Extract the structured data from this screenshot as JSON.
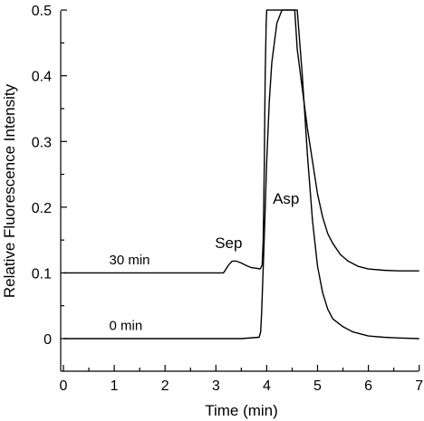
{
  "chart_data": {
    "type": "line",
    "xlabel": "Time (min)",
    "ylabel": "Relative Fluorescence Intensity",
    "xlim": [
      0,
      7
    ],
    "ylim": [
      -0.05,
      0.5
    ],
    "xticks": [
      "0",
      "1",
      "2",
      "3",
      "4",
      "5",
      "6",
      "7"
    ],
    "yticks": [
      "0",
      "0.1",
      "0.2",
      "0.3",
      "0.4",
      "0.5"
    ],
    "grid": false,
    "series": [
      {
        "name": "30 min",
        "x": [
          0.0,
          3.15,
          3.25,
          3.32,
          3.4,
          3.5,
          3.6,
          3.7,
          3.8,
          3.87,
          3.91,
          3.93,
          3.95,
          3.97,
          3.99,
          4.0,
          4.55,
          4.6,
          4.7,
          4.8,
          4.9,
          5.0,
          5.1,
          5.2,
          5.3,
          5.45,
          5.6,
          5.8,
          6.0,
          6.3,
          6.6,
          7.0
        ],
        "y": [
          0.1,
          0.1,
          0.112,
          0.118,
          0.118,
          0.115,
          0.111,
          0.108,
          0.107,
          0.106,
          0.112,
          0.15,
          0.25,
          0.4,
          0.48,
          0.5,
          0.5,
          0.44,
          0.38,
          0.32,
          0.27,
          0.22,
          0.185,
          0.16,
          0.145,
          0.128,
          0.118,
          0.11,
          0.106,
          0.104,
          0.103,
          0.103
        ]
      },
      {
        "name": "0 min",
        "x": [
          0.0,
          3.5,
          3.85,
          3.88,
          3.9,
          3.95,
          4.0,
          4.05,
          4.1,
          4.2,
          4.3,
          4.38,
          4.6,
          4.7,
          4.8,
          4.9,
          5.0,
          5.1,
          5.2,
          5.3,
          5.5,
          5.7,
          6.0,
          6.3,
          6.6,
          7.0
        ],
        "y": [
          0.0,
          0.0,
          0.002,
          0.01,
          0.04,
          0.15,
          0.27,
          0.36,
          0.42,
          0.48,
          0.5,
          0.5,
          0.5,
          0.4,
          0.28,
          0.18,
          0.11,
          0.07,
          0.045,
          0.03,
          0.018,
          0.01,
          0.004,
          0.002,
          0.001,
          0.0
        ]
      }
    ],
    "annotations": [
      {
        "text": "30 min",
        "x": 0.9,
        "y": 0.113
      },
      {
        "text": "0 min",
        "x": 0.9,
        "y": 0.013
      },
      {
        "text": "Sep",
        "x": 3.25,
        "y": 0.138
      },
      {
        "text": "Asp",
        "x": 4.38,
        "y": 0.205
      }
    ]
  }
}
